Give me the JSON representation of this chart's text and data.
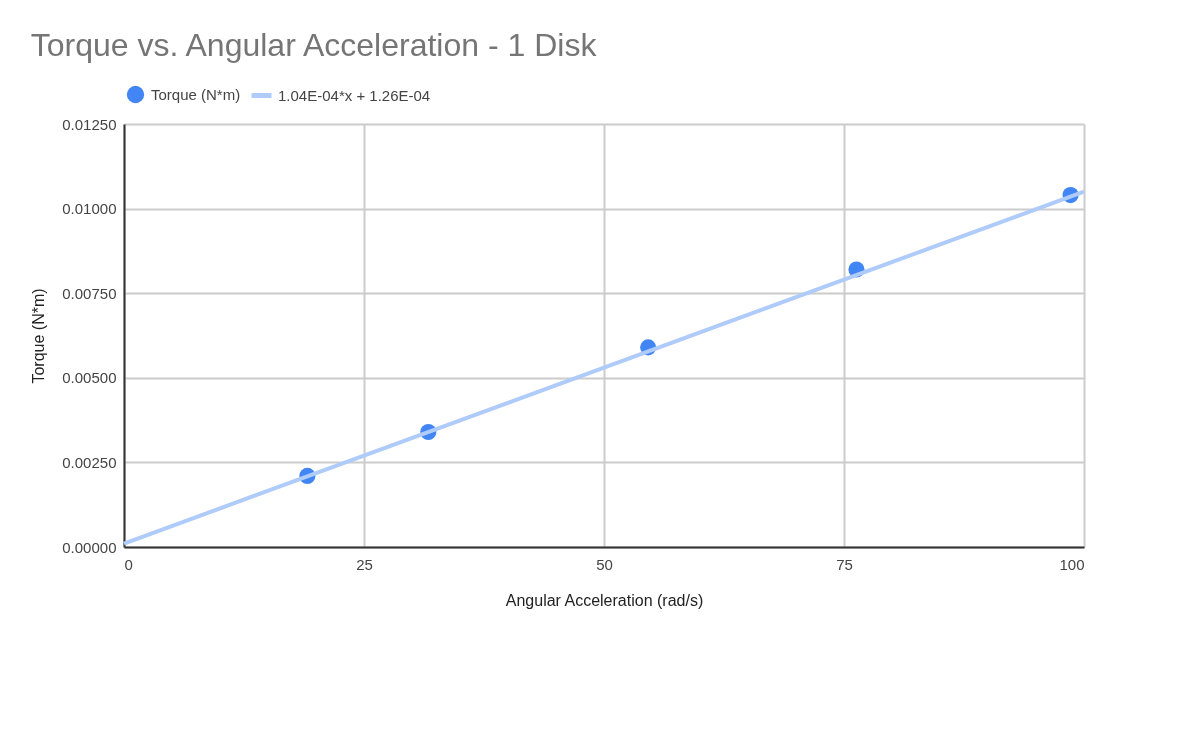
{
  "chart_data": {
    "type": "scatter",
    "title": "Torque vs. Angular Acceleration - 1 Disk",
    "xlabel": "Angular Acceleration (rad/s)",
    "ylabel": "Torque (N*m)",
    "series": [
      {
        "name": "Torque (N*m)",
        "color": "#4285f4",
        "marker": "circle",
        "x": [
          19.1,
          31.7,
          54.6,
          76.3,
          98.6
        ],
        "values": [
          0.0021,
          0.0034,
          0.0059,
          0.0082,
          0.0104
        ]
      },
      {
        "name": "1.04E-04*x + 1.26E-04",
        "type": "line",
        "color": "#aecbfa",
        "line_style": "solid",
        "x": [
          0,
          100
        ],
        "values": [
          0.0001,
          0.0105
        ]
      }
    ],
    "xlim": [
      0,
      100
    ],
    "xticks": [
      0,
      25,
      50,
      75,
      100
    ],
    "ylim": [
      0,
      0.0125
    ],
    "yticks": [
      {
        "value": 0,
        "label": "0.00000"
      },
      {
        "value": 0.0025,
        "label": "0.00250"
      },
      {
        "value": 0.005,
        "label": "0.00500"
      },
      {
        "value": 0.0075,
        "label": "0.00750"
      },
      {
        "value": 0.01,
        "label": "0.01000"
      },
      {
        "value": 0.0125,
        "label": "0.01250"
      }
    ],
    "grid": true,
    "legend": "top"
  }
}
